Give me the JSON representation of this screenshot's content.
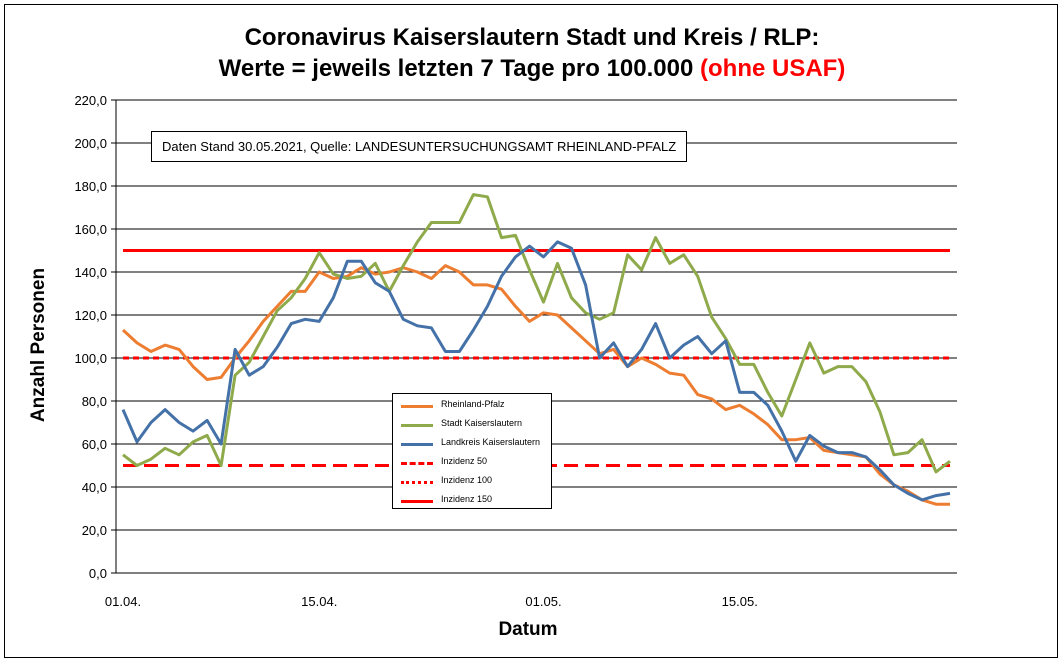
{
  "chart_data": {
    "type": "line",
    "title_line1": "Coronavirus Kaiserslautern Stadt und Kreis / RLP:",
    "title_line2": "Werte = jeweils letzten 7 Tage pro 100.000",
    "title_highlight": "(ohne USAF)",
    "ylabel": "Anzahl Personen",
    "xlabel": "Datum",
    "annotation": "Daten Stand 30.05.2021, Quelle: LANDESUNTERSUCHUNGSAMT RHEINLAND-PFALZ",
    "ylim": [
      0,
      220
    ],
    "yticks": [
      "0,0",
      "20,0",
      "40,0",
      "60,0",
      "80,0",
      "100,0",
      "120,0",
      "140,0",
      "160,0",
      "180,0",
      "200,0",
      "220,0"
    ],
    "ytick_values": [
      0,
      20,
      40,
      60,
      80,
      100,
      120,
      140,
      160,
      180,
      200,
      220
    ],
    "x_count": 60,
    "xticks": [
      {
        "label": "01.04.",
        "index": 0
      },
      {
        "label": "15.04.",
        "index": 14
      },
      {
        "label": "01.05.",
        "index": 30
      },
      {
        "label": "15.05.",
        "index": 44
      }
    ],
    "grid": true,
    "legend_position": "center-bottom",
    "series": [
      {
        "name": "Rheinland-Pfalz",
        "color": "#ED7D31",
        "dash": "solid",
        "values": [
          113,
          107,
          103,
          106,
          104,
          96,
          90,
          91,
          100,
          108,
          117,
          124,
          131,
          131,
          140,
          137,
          138,
          142,
          139,
          140,
          142,
          140,
          137,
          143,
          140,
          134,
          134,
          132,
          124,
          117,
          121,
          120,
          114,
          108,
          102,
          104,
          96,
          100,
          97,
          93,
          92,
          83,
          81,
          76,
          78,
          74,
          69,
          62,
          62,
          63,
          57,
          56,
          55,
          54,
          46,
          41,
          38,
          34,
          32,
          32
        ]
      },
      {
        "name": "Stadt Kaiserslautern",
        "color": "#8FAA4B",
        "dash": "solid",
        "values": [
          55,
          50,
          53,
          58,
          55,
          61,
          64,
          50,
          92,
          98,
          110,
          122,
          128,
          137,
          149,
          139,
          137,
          138,
          144,
          131,
          143,
          154,
          163,
          163,
          163,
          176,
          175,
          156,
          157,
          141,
          126,
          144,
          128,
          121,
          118,
          121,
          148,
          141,
          156,
          144,
          148,
          138,
          119,
          109,
          97,
          97,
          84,
          73,
          90,
          107,
          93,
          96,
          96,
          89,
          75,
          55,
          56,
          62,
          47,
          52
        ]
      },
      {
        "name": "Landkreis Kaiserslautern",
        "color": "#4472A8",
        "dash": "solid",
        "values": [
          76,
          61,
          70,
          76,
          70,
          66,
          71,
          60,
          104,
          92,
          96,
          105,
          116,
          118,
          117,
          128,
          145,
          145,
          135,
          131,
          118,
          115,
          114,
          103,
          103,
          113,
          124,
          138,
          147,
          152,
          147,
          154,
          151,
          134,
          100,
          107,
          96,
          104,
          116,
          100,
          106,
          110,
          102,
          108,
          84,
          84,
          78,
          66,
          52,
          64,
          59,
          56,
          56,
          54,
          48,
          41,
          37,
          34,
          36,
          37
        ]
      },
      {
        "name": "Inzidenz 50",
        "color": "#FF0000",
        "dash": "long",
        "constant": 50
      },
      {
        "name": "Inzidenz 100",
        "color": "#FF0000",
        "dash": "short",
        "constant": 100
      },
      {
        "name": "Inzidenz 150",
        "color": "#FF0000",
        "dash": "solid",
        "constant": 150
      }
    ]
  }
}
